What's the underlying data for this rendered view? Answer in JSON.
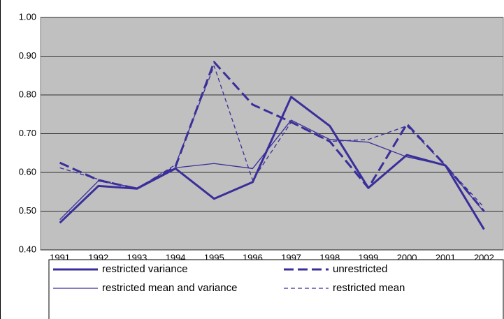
{
  "chart_data": {
    "type": "line",
    "categories": [
      "1991",
      "1992",
      "1993",
      "1994",
      "1995",
      "1996",
      "1997",
      "1998",
      "1999",
      "2000",
      "2001",
      "2002"
    ],
    "series": [
      {
        "name": "restricted variance",
        "color": "#3a2f9a",
        "width": 3,
        "dashed": false,
        "values": [
          0.47,
          0.565,
          0.558,
          0.61,
          0.532,
          0.575,
          0.795,
          0.72,
          0.56,
          0.645,
          0.618,
          0.453
        ]
      },
      {
        "name": "unrestricted",
        "color": "#3a2f9a",
        "width": 3,
        "dashed": true,
        "values": [
          0.625,
          0.58,
          0.558,
          0.615,
          0.885,
          0.775,
          0.73,
          0.68,
          0.56,
          0.725,
          0.618,
          0.5
        ]
      },
      {
        "name": "restricted mean and variance",
        "color": "#3a2f9a",
        "width": 1.3,
        "dashed": false,
        "values": [
          0.478,
          0.578,
          0.56,
          0.612,
          0.623,
          0.61,
          0.735,
          0.685,
          0.678,
          0.64,
          0.618,
          0.498
        ]
      },
      {
        "name": "restricted mean",
        "color": "#3a2f9a",
        "width": 1.3,
        "dashed": true,
        "values": [
          0.612,
          0.582,
          0.558,
          0.62,
          0.875,
          0.58,
          0.73,
          0.68,
          0.685,
          0.72,
          0.618,
          0.51
        ]
      }
    ],
    "ylim": [
      0.4,
      1.0
    ],
    "yticks": [
      {
        "value": 0.4,
        "label": "0.40"
      },
      {
        "value": 0.5,
        "label": "0.50"
      },
      {
        "value": 0.6,
        "label": "0.60"
      },
      {
        "value": 0.7,
        "label": "0.70"
      },
      {
        "value": 0.8,
        "label": "0.80"
      },
      {
        "value": 0.9,
        "label": "0.90"
      },
      {
        "value": 1.0,
        "label": "1.00"
      }
    ],
    "grid": true,
    "plot_background": "#c0c0c0",
    "legend": "bottom"
  }
}
